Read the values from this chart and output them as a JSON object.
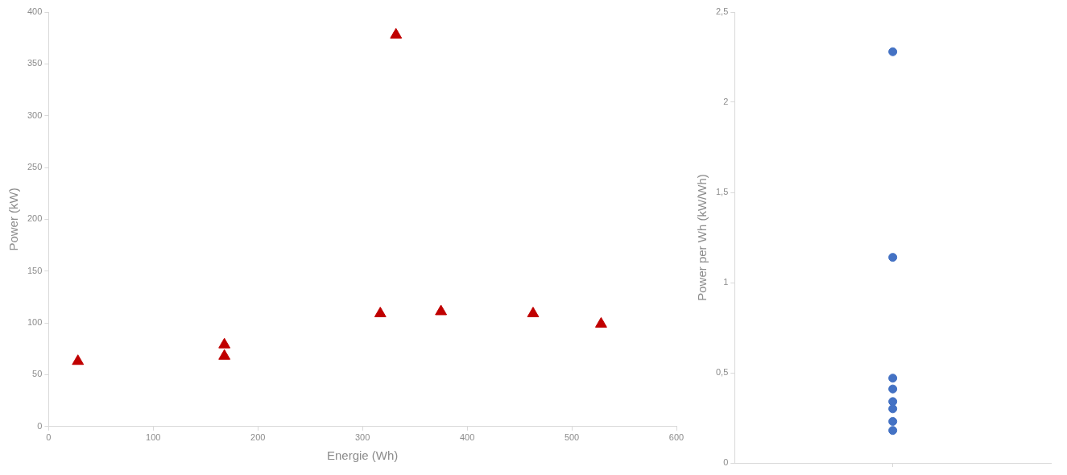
{
  "chart_data": [
    {
      "type": "scatter",
      "xlabel": "Energie (Wh)",
      "ylabel": "Power (kW)",
      "marker": "triangle",
      "grid": false,
      "legend": false,
      "series": [
        {
          "color": "#c00000",
          "x": [
            28,
            168,
            168,
            317,
            332,
            375,
            463,
            528
          ],
          "values": [
            63,
            79,
            68,
            109,
            378,
            111,
            109,
            99
          ]
        }
      ],
      "xlim": [
        0,
        600
      ],
      "xticks": [
        0,
        100,
        200,
        300,
        400,
        500,
        600
      ],
      "ylim": [
        0,
        400
      ],
      "yticks": [
        0,
        50,
        100,
        150,
        200,
        250,
        300,
        350,
        400
      ]
    },
    {
      "type": "scatter",
      "ylabel": "Power per Wh (kW/Wh)",
      "marker": "circle",
      "grid": false,
      "legend": false,
      "tick_labels": "y",
      "categories": [
        null
      ],
      "series": [
        {
          "color": "#4472c4",
          "values": [
            2.28
          ]
        },
        {
          "color": "#4472c4",
          "values": [
            1.14
          ]
        },
        {
          "color": "#4472c4",
          "values": [
            0.47
          ]
        },
        {
          "color": "#4472c4",
          "values": [
            0.41
          ]
        },
        {
          "color": "#4472c4",
          "values": [
            0.34
          ]
        },
        {
          "color": "#4472c4",
          "values": [
            0.3
          ]
        },
        {
          "color": "#4472c4",
          "values": [
            0.23
          ]
        },
        {
          "color": "#4472c4",
          "values": [
            0.18
          ]
        }
      ],
      "ylim": [
        0,
        2.5
      ],
      "yticks": [
        0,
        {
          "value": 0.5,
          "label": "0,5"
        },
        1,
        {
          "value": 1.5,
          "label": "1,5"
        },
        2,
        {
          "value": 2.5,
          "label": "2,5"
        }
      ]
    }
  ]
}
